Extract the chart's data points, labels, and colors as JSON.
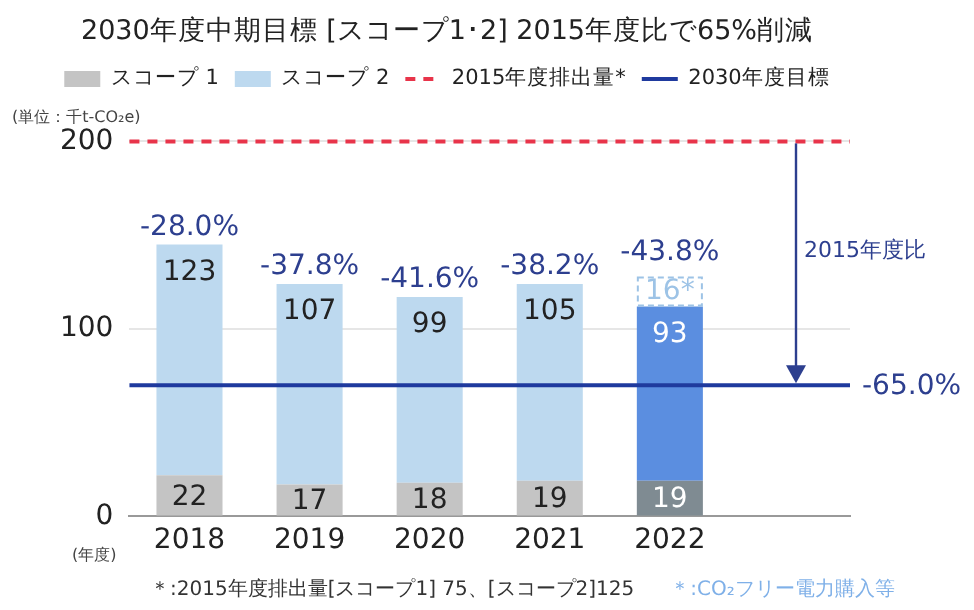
{
  "chart_data": {
    "type": "bar",
    "title": "2030年度中期目標 [スコープ1･2] 2015年度比で65%削減",
    "ylabel": "(単位：千t-CO₂e)",
    "xlabel": "(年度)",
    "categories": [
      "2018",
      "2019",
      "2020",
      "2021",
      "2022"
    ],
    "stacked": true,
    "ylim": [
      0,
      200
    ],
    "yticks": [
      0,
      100,
      200
    ],
    "grid": "y",
    "legend": "top",
    "series": [
      {
        "name": "スコープ 1",
        "colors": [
          "#c4c4c4",
          "#c4c4c4",
          "#c4c4c4",
          "#c4c4c4",
          "#7f8b92"
        ],
        "values": [
          22,
          17,
          18,
          19,
          19
        ],
        "value_labels": [
          "22",
          "17",
          "18",
          "19",
          "19"
        ]
      },
      {
        "name": "スコープ 2",
        "colors": [
          "#bdd9ef",
          "#bdd9ef",
          "#bdd9ef",
          "#bdd9ef",
          "#5b8ee0"
        ],
        "values": [
          123,
          107,
          99,
          105,
          93
        ],
        "value_labels": [
          "123",
          "107",
          "99",
          "105",
          "93"
        ]
      },
      {
        "color": "#9dc3e6",
        "line_style": "dashed",
        "values": [
          null,
          null,
          null,
          null,
          16
        ],
        "value_labels": [
          null,
          null,
          null,
          null,
          "16*"
        ]
      }
    ],
    "ref_lines": [
      {
        "axis": "y",
        "value": 200,
        "label": "2015年度排出量*",
        "color": "#e8344a",
        "line_style": "dashed"
      },
      {
        "axis": "y",
        "value": 70,
        "label": "2030年度目標",
        "color": "#1f3a9e",
        "line_style": "solid"
      }
    ],
    "annotations": [
      {
        "text": "-28.0%",
        "x": "2018",
        "y": 145
      },
      {
        "text": "-37.8%",
        "x": "2019",
        "y": 124
      },
      {
        "text": "-41.6%",
        "x": "2020",
        "y": 117
      },
      {
        "text": "-38.2%",
        "x": "2021",
        "y": 124
      },
      {
        "text": "-43.8%",
        "x": "2022",
        "y": 128
      },
      "2015年度比",
      "-65.0%",
      "＊:2015年度排出量[スコープ1] 75、[スコープ2]125",
      "＊:CO₂フリー電力購入等"
    ]
  }
}
